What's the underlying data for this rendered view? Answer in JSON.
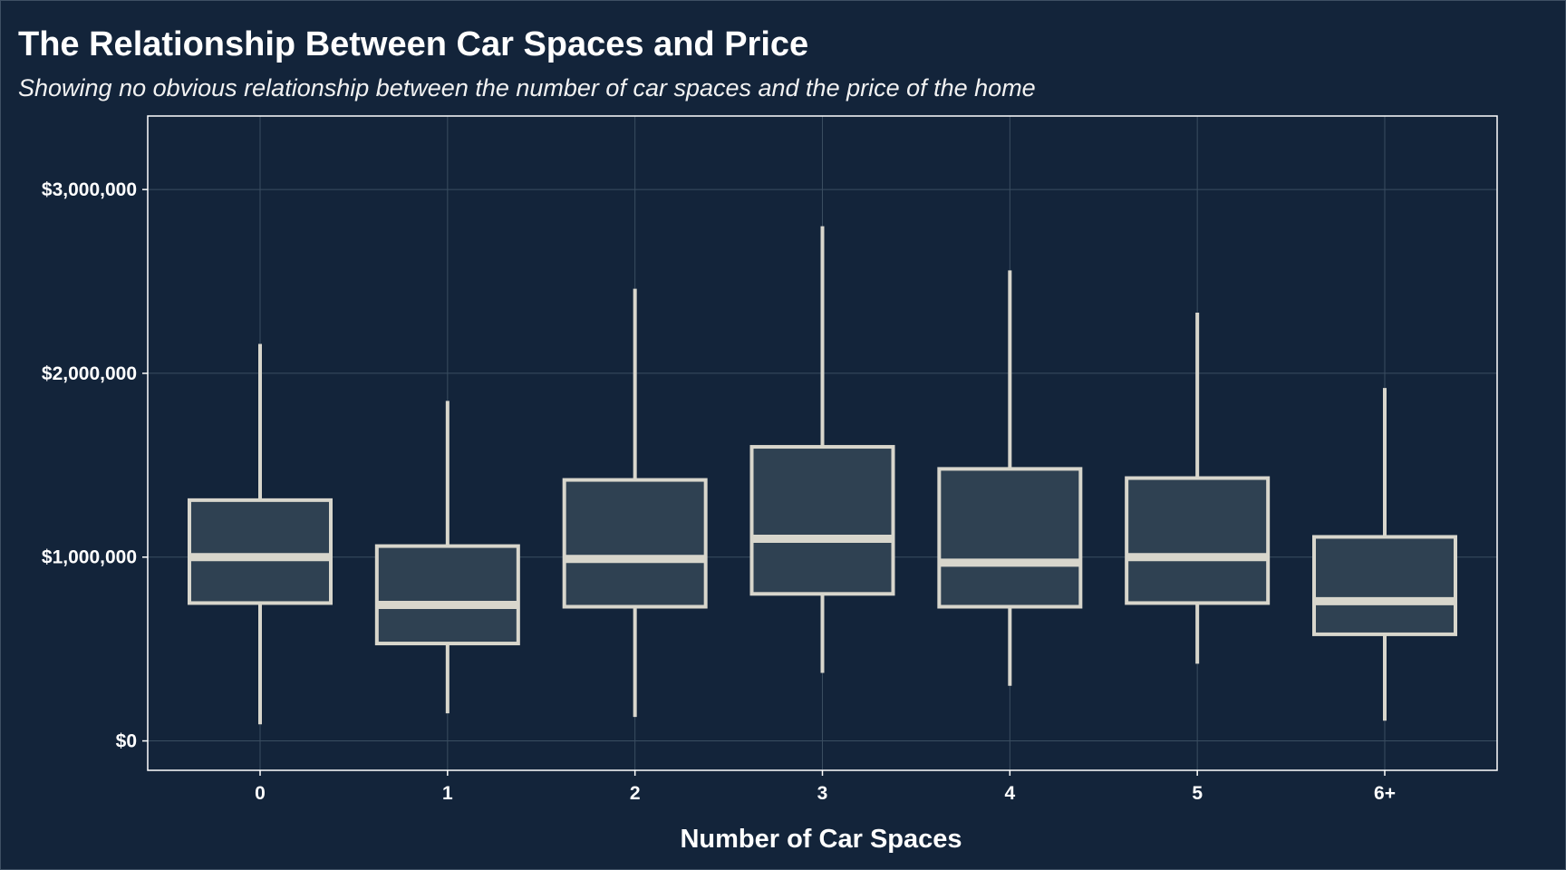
{
  "colors": {
    "background": "#13243a",
    "panel_border": "#ffffff",
    "grid": "#3a4d60",
    "box_fill": "#2f4152",
    "box_stroke": "#d8d6cc",
    "text": "#ffffff"
  },
  "chart_data": {
    "type": "boxplot",
    "title": "The Relationship Between Car Spaces and Price",
    "subtitle": "Showing no obvious relationship between the number of car spaces and the price of the home",
    "xlabel": "Number of Car Spaces",
    "ylabel": "",
    "ylim": [
      -160000,
      3400000
    ],
    "y_ticks": [
      0,
      1000000,
      2000000,
      3000000
    ],
    "y_tick_labels": [
      "$0",
      "$1,000,000",
      "$2,000,000",
      "$3,000,000"
    ],
    "grid": true,
    "categories": [
      "0",
      "1",
      "2",
      "3",
      "4",
      "5",
      "6+"
    ],
    "boxes": [
      {
        "category": "0",
        "min": 90000,
        "q1": 750000,
        "median": 1000000,
        "q3": 1310000,
        "max": 2160000
      },
      {
        "category": "1",
        "min": 150000,
        "q1": 530000,
        "median": 740000,
        "q3": 1060000,
        "max": 1850000
      },
      {
        "category": "2",
        "min": 130000,
        "q1": 730000,
        "median": 990000,
        "q3": 1420000,
        "max": 2460000
      },
      {
        "category": "3",
        "min": 370000,
        "q1": 800000,
        "median": 1100000,
        "q3": 1600000,
        "max": 2800000
      },
      {
        "category": "4",
        "min": 300000,
        "q1": 730000,
        "median": 970000,
        "q3": 1480000,
        "max": 2560000
      },
      {
        "category": "5",
        "min": 420000,
        "q1": 750000,
        "median": 1000000,
        "q3": 1430000,
        "max": 2330000
      },
      {
        "category": "6+",
        "min": 110000,
        "q1": 580000,
        "median": 760000,
        "q3": 1110000,
        "max": 1920000
      }
    ]
  }
}
